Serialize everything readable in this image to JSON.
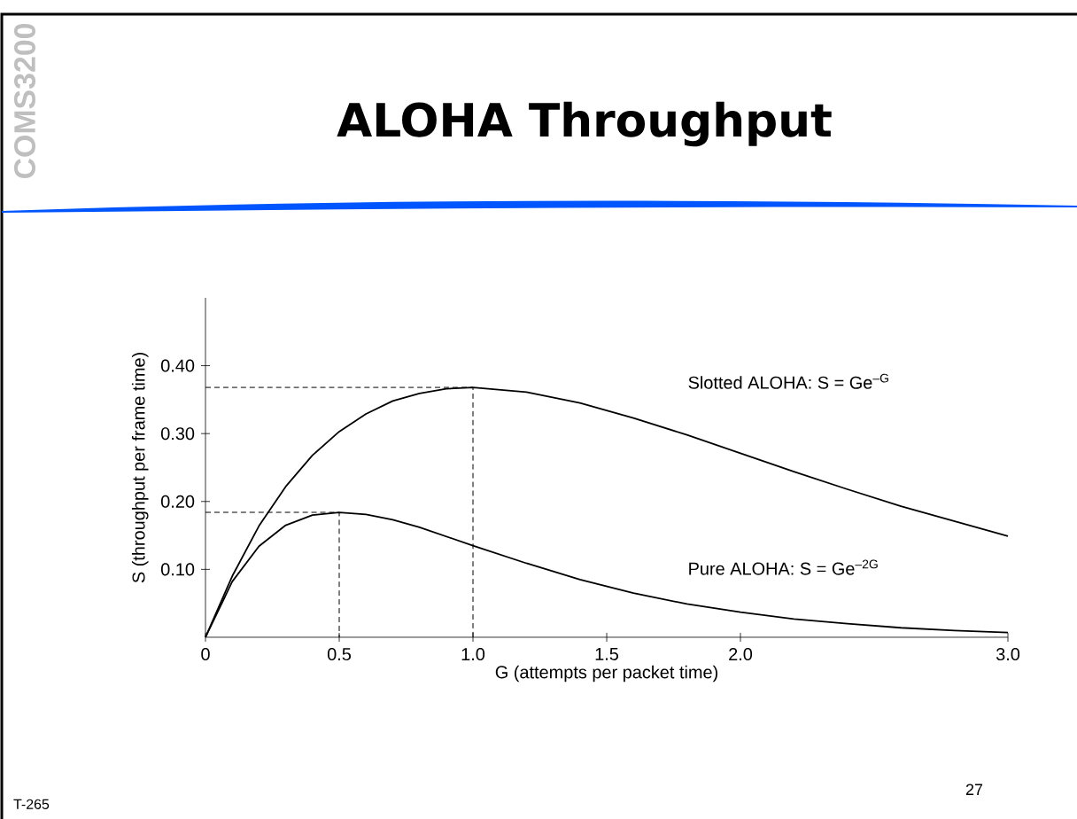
{
  "chart_data": {
    "type": "line",
    "title": "ALOHA Throughput",
    "xlabel": "G (attempts per packet time)",
    "ylabel": "S (throughput per frame time)",
    "xlim": [
      0,
      3
    ],
    "ylim": [
      0,
      0.5
    ],
    "xticks": [
      0,
      0.5,
      {
        "value": 1,
        "label": "1.0"
      },
      1.5,
      {
        "value": 2,
        "label": "2.0"
      },
      {
        "value": 3,
        "label": "3.0"
      }
    ],
    "yticks": [
      {
        "value": 0.1,
        "label": "0.10"
      },
      {
        "value": 0.2,
        "label": "0.20"
      },
      {
        "value": 0.3,
        "label": "0.30"
      },
      {
        "value": 0.4,
        "label": "0.40"
      }
    ],
    "series": [
      {
        "name": "Slotted ALOHA: S = Ge$^{–G}$",
        "color": "#000000",
        "line_style": "solid",
        "x": [
          0,
          0.1,
          0.2,
          0.3,
          0.4,
          0.5,
          0.6,
          0.7,
          0.8,
          0.9,
          1.0,
          1.2,
          1.4,
          1.6,
          1.8,
          2.0,
          2.2,
          2.4,
          2.6,
          2.8,
          3.0
        ],
        "values": [
          0,
          0.09,
          0.164,
          0.222,
          0.268,
          0.303,
          0.329,
          0.348,
          0.359,
          0.366,
          0.368,
          0.361,
          0.345,
          0.323,
          0.298,
          0.271,
          0.244,
          0.218,
          0.193,
          0.171,
          0.149
        ]
      },
      {
        "name": "Pure ALOHA: S = Ge$^{–2G}$",
        "color": "#000000",
        "line_style": "solid",
        "x": [
          0,
          0.1,
          0.2,
          0.3,
          0.4,
          0.5,
          0.6,
          0.7,
          0.8,
          1.0,
          1.2,
          1.4,
          1.6,
          1.8,
          2.0,
          2.2,
          2.4,
          2.6,
          2.8,
          3.0
        ],
        "values": [
          0,
          0.082,
          0.134,
          0.165,
          0.18,
          0.184,
          0.181,
          0.173,
          0.162,
          0.135,
          0.109,
          0.085,
          0.065,
          0.049,
          0.037,
          0.027,
          0.02,
          0.014,
          0.01,
          0.007
        ]
      },
      {
        "color": "#000000",
        "line_style": "dashed",
        "x": [
          0,
          1,
          1
        ],
        "values": [
          0.368,
          0.368,
          0
        ]
      },
      {
        "color": "#000000",
        "line_style": "dashed",
        "x": [
          0,
          0.5,
          0.5
        ],
        "values": [
          0.184,
          0.184,
          0
        ]
      }
    ],
    "annotations": [
      "COMS3200",
      "T-265",
      "27"
    ]
  }
}
